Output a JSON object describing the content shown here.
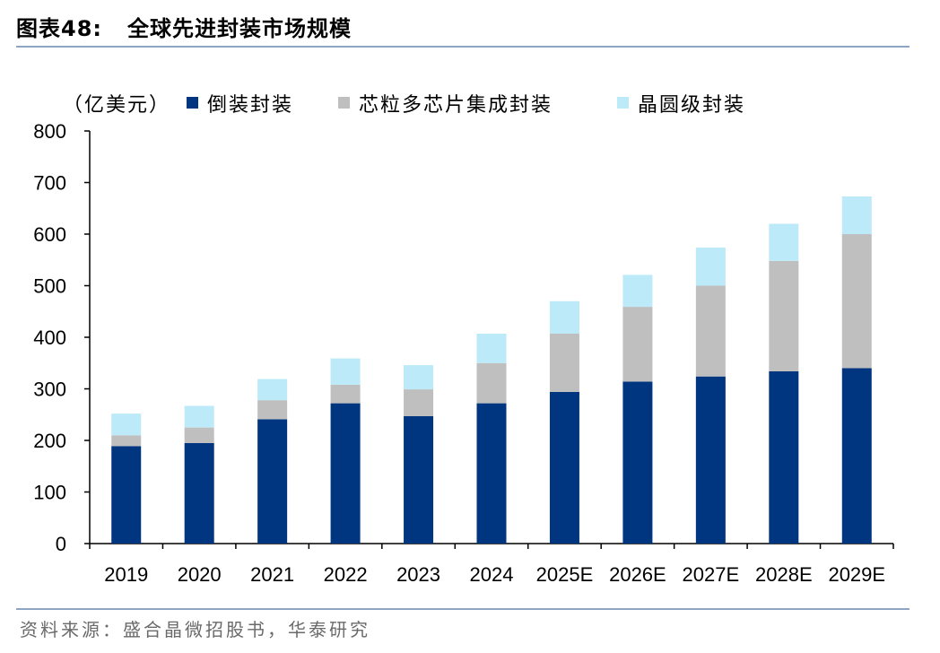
{
  "header": {
    "label": "图表48:",
    "title": "全球先进封装市场规模"
  },
  "source": "资料来源：盛合晶微招股书，华泰研究",
  "colors": {
    "flipchip": "#003580",
    "chiplet": "#bfbfbf",
    "wafer": "#bdeaf8",
    "rule": "#8ea6c4"
  },
  "chart_data": {
    "type": "bar",
    "stacked": true,
    "title": "全球先进封装市场规模",
    "unit": "（亿美元）",
    "xlabel": "",
    "ylabel": "",
    "ylim": [
      0,
      800
    ],
    "yticks": [
      0,
      100,
      200,
      300,
      400,
      500,
      600,
      700,
      800
    ],
    "categories": [
      "2019",
      "2020",
      "2021",
      "2022",
      "2023",
      "2024",
      "2025E",
      "2026E",
      "2027E",
      "2028E",
      "2029E"
    ],
    "series": [
      {
        "name": "倒装封装",
        "color": "#003580",
        "values": [
          189,
          195,
          241,
          272,
          247,
          272,
          294,
          314,
          324,
          334,
          340
        ]
      },
      {
        "name": "芯粒多芯片集成封装",
        "color": "#bfbfbf",
        "values": [
          21,
          30,
          37,
          36,
          52,
          78,
          113,
          145,
          176,
          214,
          260
        ]
      },
      {
        "name": "晶圆级封装",
        "color": "#bdeaf8",
        "values": [
          42,
          42,
          41,
          51,
          47,
          57,
          63,
          62,
          74,
          72,
          73
        ]
      }
    ],
    "legend": "top",
    "grid": false
  }
}
